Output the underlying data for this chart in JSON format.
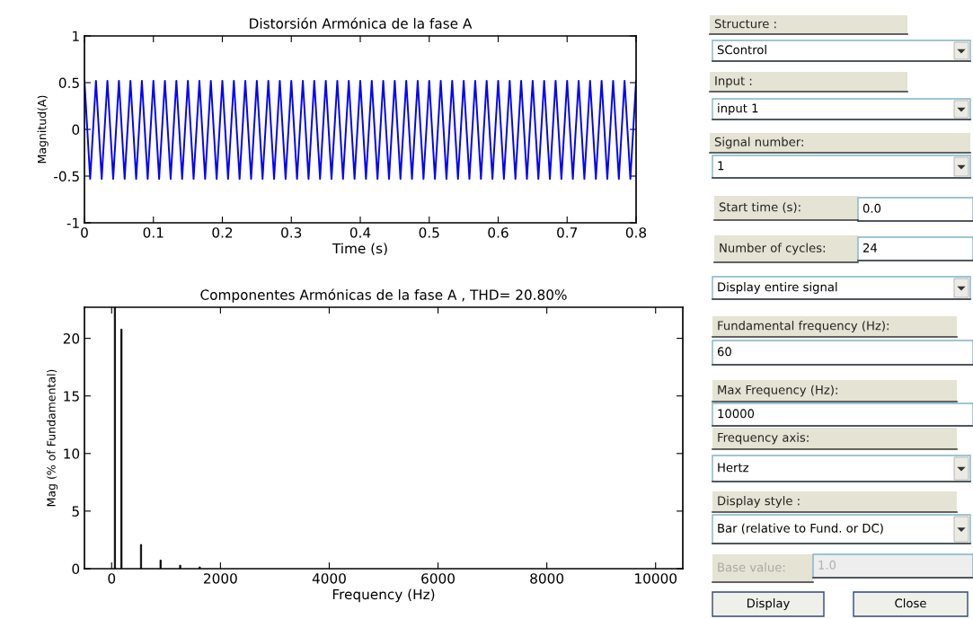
{
  "chart_data": [
    {
      "type": "line",
      "title": "Distorsión Armónica de la fase A",
      "xlabel": "Time (s)",
      "ylabel": "Magnitud(A)",
      "xlim": [
        0,
        0.8
      ],
      "ylim": [
        -1,
        1
      ],
      "xticks": [
        0,
        0.1,
        0.2,
        0.3,
        0.4,
        0.5,
        0.6,
        0.7,
        0.8
      ],
      "yticks": [
        -1,
        -0.5,
        0,
        0.5,
        1
      ],
      "series": [
        {
          "color": "#0000ff",
          "x": [
            0,
            0.0083,
            0.0167,
            0.025,
            0.0333,
            0.0417,
            0.05,
            0.0583,
            0.0667,
            0.075,
            0.0833,
            0.0917,
            0.1,
            0.1083,
            0.1167,
            0.125,
            0.1333,
            0.1417,
            0.15,
            0.1583,
            0.1667,
            0.175,
            0.1833,
            0.1917,
            0.2,
            0.2083,
            0.2167,
            0.225,
            0.2333,
            0.2417,
            0.25,
            0.2583,
            0.2667,
            0.275,
            0.2833,
            0.2917,
            0.3,
            0.3083,
            0.3167,
            0.325,
            0.3333,
            0.3417,
            0.35,
            0.3583,
            0.3667,
            0.375,
            0.3833,
            0.3917,
            0.4,
            0.4083,
            0.4167,
            0.425,
            0.4333,
            0.4417,
            0.45,
            0.4583,
            0.4667,
            0.475,
            0.4833,
            0.4917,
            0.5,
            0.5083,
            0.5167,
            0.525,
            0.5333,
            0.5417,
            0.55,
            0.5583,
            0.5667,
            0.575,
            0.5833,
            0.5917,
            0.6,
            0.6083,
            0.6167,
            0.625,
            0.6333,
            0.6417,
            0.65,
            0.6583,
            0.6667,
            0.675,
            0.6833,
            0.6917,
            0.7,
            0.7083,
            0.7167,
            0.725,
            0.7333,
            0.7417,
            0.75,
            0.7583,
            0.7667,
            0.775,
            0.7833,
            0.7917,
            0.8
          ],
          "values": [
            0.52,
            -0.53,
            0.52,
            -0.53,
            0.52,
            -0.53,
            0.52,
            -0.53,
            0.52,
            -0.53,
            0.52,
            -0.53,
            0.52,
            -0.53,
            0.52,
            -0.53,
            0.52,
            -0.53,
            0.52,
            -0.53,
            0.52,
            -0.53,
            0.52,
            -0.53,
            0.52,
            -0.53,
            0.52,
            -0.53,
            0.52,
            -0.53,
            0.52,
            -0.53,
            0.52,
            -0.53,
            0.52,
            -0.53,
            0.52,
            -0.53,
            0.52,
            -0.53,
            0.52,
            -0.53,
            0.52,
            -0.53,
            0.52,
            -0.53,
            0.52,
            -0.53,
            0.52,
            -0.53,
            0.52,
            -0.53,
            0.52,
            -0.53,
            0.52,
            -0.53,
            0.52,
            -0.53,
            0.52,
            -0.53,
            0.52,
            -0.53,
            0.52,
            -0.53,
            0.52,
            -0.53,
            0.52,
            -0.53,
            0.52,
            -0.53,
            0.52,
            -0.53,
            0.52,
            -0.53,
            0.52,
            -0.53,
            0.52,
            -0.53,
            0.52,
            -0.53,
            0.52,
            -0.53,
            0.52,
            -0.53,
            0.52,
            -0.53,
            0.52,
            -0.53,
            0.52,
            -0.53,
            0.52,
            -0.53,
            0.52,
            -0.53,
            0.52,
            -0.53,
            0.52
          ]
        }
      ]
    },
    {
      "type": "bar",
      "title": "Componentes Armónicas de la fase A , THD= 20.80%",
      "xlabel": "Frequency (Hz)",
      "ylabel": "Mag (% of Fundamental)",
      "xlim": [
        -500,
        10500
      ],
      "ylim": [
        0,
        22.7
      ],
      "xticks": [
        0,
        2000,
        4000,
        6000,
        8000,
        10000
      ],
      "yticks": [
        0,
        5,
        10,
        15,
        20
      ],
      "x": [
        60,
        180,
        540,
        900,
        1260,
        1620
      ],
      "values": [
        22.7,
        20.8,
        2.1,
        0.75,
        0.3,
        0.15
      ],
      "color": "#000000"
    },
    {
      "type": "other",
      "annotations": [
        "Structure :",
        "SControl",
        "Input :",
        "input 1",
        "Signal number:",
        "1",
        "Start time (s):",
        "0.0",
        "Number of cycles:",
        "24",
        "Display entire signal",
        "Fundamental frequency (Hz):",
        "60",
        "Max Frequency (Hz):",
        "10000",
        "Frequency axis:",
        "Hertz",
        "Display style :",
        "Bar (relative to Fund. or DC)",
        "Base value:",
        "1.0",
        "Display",
        "Close"
      ]
    }
  ]
}
